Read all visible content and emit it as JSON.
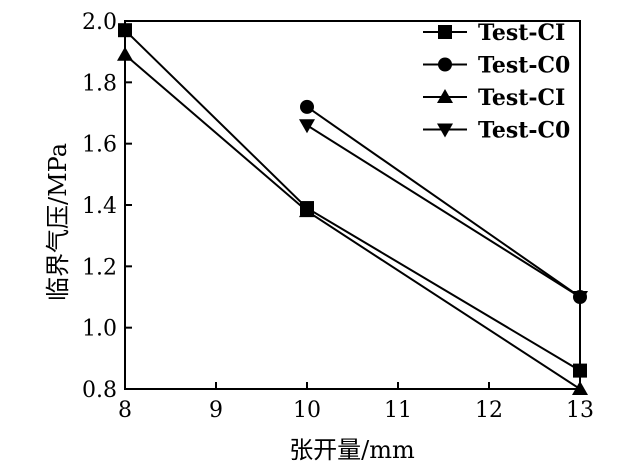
{
  "chart_data": {
    "type": "line",
    "title": "",
    "xlabel": "张开量/mm",
    "ylabel": "临界气压/MPa",
    "xlim": [
      8,
      13
    ],
    "ylim": [
      0.8,
      2.0
    ],
    "xticks": [
      8,
      9,
      10,
      11,
      12,
      13
    ],
    "yticks": [
      0.8,
      1.0,
      1.2,
      1.4,
      1.6,
      1.8,
      2.0
    ],
    "xtick_labels": [
      "8",
      "9",
      "10",
      "11",
      "12",
      "13"
    ],
    "ytick_labels": [
      "0.8",
      "1.0",
      "1.2",
      "1.4",
      "1.6",
      "1.8",
      "2.0"
    ],
    "grid": false,
    "legend_position": "top-right",
    "series": [
      {
        "name": "Test-CI",
        "marker": "square",
        "x": [
          8,
          10,
          13
        ],
        "y": [
          1.97,
          1.39,
          0.86
        ]
      },
      {
        "name": "Test-C0",
        "marker": "circle",
        "x": [
          10,
          13
        ],
        "y": [
          1.72,
          1.1
        ]
      },
      {
        "name": "Test-CI",
        "marker": "triangle-up",
        "x": [
          8,
          10,
          13
        ],
        "y": [
          1.89,
          1.38,
          0.8
        ]
      },
      {
        "name": "Test-C0",
        "marker": "triangle-down",
        "x": [
          10,
          13
        ],
        "y": [
          1.66,
          1.1
        ]
      }
    ]
  }
}
